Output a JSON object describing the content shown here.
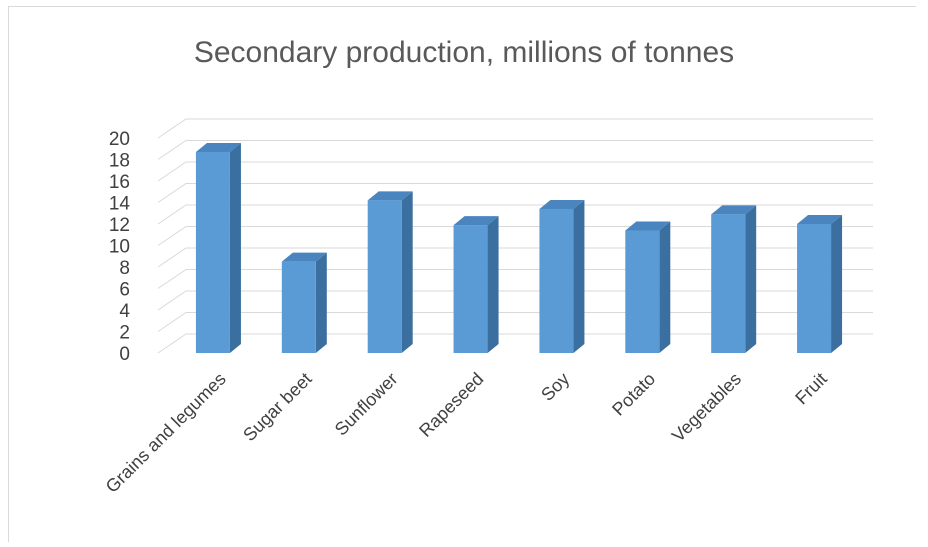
{
  "chart_data": {
    "type": "bar",
    "title": "Secondary production, millions of tonnes",
    "xlabel": "",
    "ylabel": "",
    "ylim": [
      0,
      20
    ],
    "ytick_step": 2,
    "yticks": [
      "0",
      "2",
      "4",
      "6",
      "8",
      "10",
      "12",
      "14",
      "16",
      "18",
      "20"
    ],
    "categories": [
      "Grains and legumes",
      "Sugar beet",
      "Sunflower",
      "Rapeseed",
      "Soy",
      "Potato",
      "Vegetables",
      "Fruit"
    ],
    "values": [
      18.7,
      8.5,
      14.2,
      11.9,
      13.4,
      11.4,
      12.9,
      12.0
    ],
    "grid": true,
    "legend": "none",
    "colors": {
      "bar_front": "#5b9bd5",
      "bar_side": "#3b6f9f",
      "bar_top": "#4a85bf",
      "grid": "#d9d9d9"
    }
  }
}
